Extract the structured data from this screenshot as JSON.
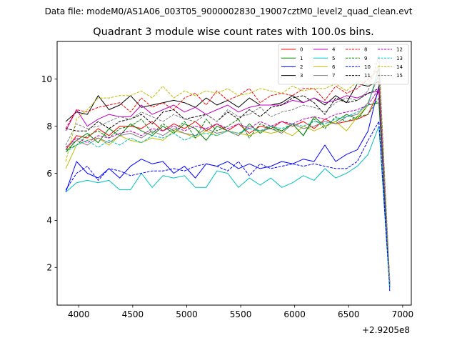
{
  "suptitle": "Data file: modeM0/AS1A06_003T05_9000002830_19007cztM0_level2_quad_clean.evt",
  "chart_data": {
    "type": "line",
    "title": "Quadrant 3 module wise count rates with 100.0s bins.",
    "xlabel": "",
    "ylabel": "",
    "x_offset_label": "+2.9205e8",
    "xlim": [
      3800,
      7080
    ],
    "ylim": [
      0.4,
      11.6
    ],
    "xticks": [
      4000,
      4500,
      5000,
      5500,
      6000,
      6500,
      7000
    ],
    "yticks": [
      2,
      4,
      6,
      8,
      10
    ],
    "grid": false,
    "legend_position": "top-right",
    "x": [
      3880,
      3980,
      4080,
      4180,
      4280,
      4380,
      4480,
      4580,
      4680,
      4780,
      4880,
      4980,
      5080,
      5180,
      5280,
      5380,
      5480,
      5580,
      5680,
      5780,
      5880,
      5980,
      6080,
      6180,
      6280,
      6380,
      6480,
      6580,
      6680,
      6780,
      6880
    ],
    "series": [
      {
        "name": "0",
        "color": "#ff0000",
        "dash": false,
        "values": [
          7.0,
          7.6,
          7.5,
          7.9,
          7.6,
          8.0,
          8.0,
          7.9,
          8.2,
          7.8,
          8.1,
          7.9,
          8.2,
          7.8,
          8.1,
          7.8,
          8.1,
          7.7,
          8.0,
          7.9,
          8.2,
          8.0,
          8.2,
          7.9,
          8.3,
          8.1,
          8.2,
          8.3,
          8.5,
          9.5,
          1.2
        ]
      },
      {
        "name": "1",
        "color": "#008000",
        "dash": false,
        "values": [
          6.9,
          7.4,
          7.7,
          7.3,
          7.9,
          7.6,
          8.1,
          7.8,
          7.6,
          8.0,
          7.7,
          8.1,
          7.9,
          7.4,
          8.0,
          7.8,
          7.6,
          8.1,
          7.7,
          8.0,
          7.8,
          8.1,
          7.6,
          8.4,
          8.0,
          8.2,
          8.5,
          8.3,
          8.9,
          9.0,
          1.2
        ]
      },
      {
        "name": "2",
        "color": "#0000ff",
        "dash": false,
        "values": [
          5.2,
          6.5,
          6.0,
          5.8,
          6.2,
          5.8,
          6.3,
          6.6,
          6.4,
          6.5,
          6.0,
          6.3,
          5.8,
          6.4,
          6.3,
          6.5,
          6.2,
          6.4,
          6.2,
          6.3,
          6.5,
          6.4,
          6.6,
          6.5,
          7.2,
          6.5,
          6.8,
          7.0,
          7.8,
          9.7,
          1.0
        ]
      },
      {
        "name": "3",
        "color": "#000000",
        "dash": false,
        "values": [
          8.2,
          8.6,
          8.5,
          9.3,
          8.7,
          8.9,
          9.3,
          8.8,
          8.9,
          9.0,
          9.1,
          9.0,
          8.8,
          9.2,
          8.9,
          9.1,
          8.8,
          9.2,
          8.9,
          8.9,
          9.0,
          9.3,
          9.0,
          9.2,
          8.9,
          9.3,
          9.0,
          9.8,
          9.7,
          9.9,
          1.3
        ]
      },
      {
        "name": "4",
        "color": "#bf00bf",
        "dash": false,
        "values": [
          7.8,
          8.7,
          8.0,
          8.3,
          8.5,
          8.4,
          8.4,
          8.9,
          8.5,
          8.7,
          8.9,
          8.6,
          8.8,
          8.5,
          8.7,
          8.9,
          8.6,
          8.8,
          8.9,
          8.9,
          8.9,
          9.1,
          9.0,
          9.2,
          9.0,
          9.1,
          9.3,
          9.2,
          9.4,
          9.5,
          1.2
        ]
      },
      {
        "name": "5",
        "color": "#00bfbf",
        "dash": false,
        "values": [
          5.2,
          5.6,
          5.7,
          5.6,
          5.7,
          5.3,
          5.3,
          6.0,
          5.4,
          5.9,
          5.8,
          5.9,
          5.4,
          5.4,
          6.1,
          6.0,
          5.4,
          5.8,
          5.5,
          5.8,
          5.4,
          5.6,
          5.9,
          5.7,
          6.2,
          5.8,
          6.0,
          6.3,
          6.8,
          8.0,
          1.1
        ]
      },
      {
        "name": "6",
        "color": "#bfbf00",
        "dash": false,
        "values": [
          6.2,
          7.2,
          7.4,
          7.5,
          7.2,
          7.6,
          7.4,
          7.3,
          7.5,
          7.4,
          7.8,
          7.7,
          7.5,
          7.8,
          7.6,
          7.8,
          7.7,
          7.6,
          7.8,
          7.7,
          7.8,
          7.6,
          8.0,
          7.8,
          8.0,
          8.2,
          7.8,
          8.4,
          8.9,
          10.5,
          1.3
        ]
      },
      {
        "name": "7",
        "color": "#808080",
        "dash": false,
        "values": [
          7.1,
          7.4,
          7.2,
          7.5,
          7.3,
          7.6,
          7.7,
          7.5,
          7.8,
          7.6,
          7.9,
          7.7,
          7.6,
          7.9,
          7.7,
          7.8,
          7.6,
          8.0,
          7.8,
          7.9,
          7.7,
          8.1,
          7.9,
          8.0,
          8.2,
          8.1,
          8.4,
          8.5,
          9.0,
          10.2,
          1.3
        ]
      },
      {
        "name": "8",
        "color": "#ff0000",
        "dash": true,
        "values": [
          7.9,
          8.7,
          8.6,
          8.8,
          8.9,
          9.0,
          8.6,
          9.2,
          8.8,
          9.0,
          8.7,
          9.2,
          9.4,
          8.9,
          9.5,
          9.1,
          9.3,
          9.6,
          9.0,
          9.3,
          9.4,
          9.3,
          9.6,
          9.6,
          9.1,
          9.7,
          9.4,
          9.6,
          10.0,
          10.4,
          1.3
        ]
      },
      {
        "name": "9",
        "color": "#008000",
        "dash": true,
        "values": [
          7.0,
          7.2,
          7.6,
          7.8,
          7.5,
          7.9,
          8.0,
          8.3,
          7.7,
          8.1,
          7.8,
          8.2,
          7.5,
          8.3,
          7.8,
          8.0,
          8.3,
          7.5,
          8.1,
          7.9,
          7.8,
          8.1,
          7.6,
          8.3,
          7.9,
          8.4,
          8.2,
          8.4,
          8.5,
          9.2,
          1.2
        ]
      },
      {
        "name": "10",
        "color": "#0000ff",
        "dash": true,
        "values": [
          5.3,
          6.0,
          6.3,
          5.7,
          6.2,
          6.1,
          5.9,
          6.0,
          6.1,
          6.1,
          6.2,
          6.1,
          6.3,
          6.4,
          6.3,
          6.1,
          6.5,
          5.9,
          6.4,
          6.2,
          6.3,
          6.4,
          6.3,
          6.4,
          6.3,
          6.2,
          6.2,
          6.5,
          7.4,
          8.2,
          1.1
        ]
      },
      {
        "name": "11",
        "color": "#000000",
        "dash": true,
        "values": [
          7.9,
          7.8,
          7.8,
          8.2,
          7.9,
          8.2,
          8.3,
          8.5,
          8.1,
          8.6,
          8.7,
          8.3,
          8.4,
          8.5,
          8.2,
          8.6,
          8.3,
          8.7,
          8.4,
          8.8,
          8.9,
          9.2,
          9.3,
          9.0,
          8.5,
          9.2,
          9.0,
          9.1,
          9.4,
          9.6,
          1.4
        ]
      },
      {
        "name": "12",
        "color": "#bf00bf",
        "dash": true,
        "values": [
          7.1,
          7.5,
          7.3,
          7.6,
          7.5,
          7.7,
          7.8,
          7.6,
          7.9,
          7.8,
          8.0,
          7.8,
          8.0,
          7.9,
          8.1,
          7.9,
          8.1,
          7.9,
          8.2,
          8.0,
          8.2,
          8.1,
          8.3,
          8.4,
          8.3,
          8.5,
          8.6,
          8.7,
          8.9,
          9.6,
          1.4
        ]
      },
      {
        "name": "13",
        "color": "#00bfbf",
        "dash": true,
        "values": [
          6.9,
          7.2,
          7.4,
          7.1,
          7.4,
          7.2,
          7.5,
          7.3,
          7.6,
          7.5,
          7.7,
          7.4,
          7.6,
          7.7,
          7.6,
          7.8,
          7.7,
          7.9,
          7.8,
          8.0,
          7.9,
          8.1,
          8.0,
          8.2,
          8.1,
          8.3,
          8.4,
          8.6,
          8.9,
          10.5,
          1.2
        ]
      },
      {
        "name": "14",
        "color": "#bfbf00",
        "dash": true,
        "values": [
          6.5,
          8.3,
          8.7,
          9.2,
          9.2,
          9.3,
          9.3,
          9.5,
          9.2,
          9.7,
          9.2,
          9.5,
          9.3,
          9.5,
          9.4,
          9.6,
          9.3,
          9.4,
          9.6,
          9.5,
          9.4,
          9.7,
          9.5,
          9.6,
          9.6,
          9.8,
          9.5,
          9.9,
          9.8,
          10.6,
          1.5
        ]
      },
      {
        "name": "15",
        "color": "#808080",
        "dash": true,
        "values": [
          7.2,
          8.1,
          7.9,
          8.0,
          8.2,
          8.4,
          8.3,
          8.6,
          8.4,
          8.2,
          8.5,
          8.3,
          8.2,
          8.5,
          8.2,
          8.7,
          8.4,
          8.5,
          8.8,
          8.4,
          8.6,
          8.7,
          8.9,
          8.8,
          8.6,
          9.0,
          9.2,
          9.1,
          9.5,
          11.0,
          1.4
        ]
      }
    ]
  }
}
